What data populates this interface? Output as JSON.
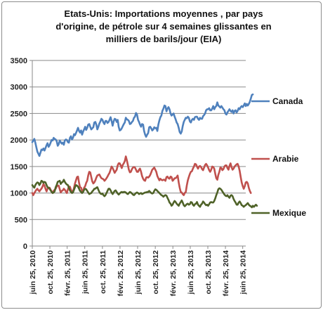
{
  "title_lines": [
    "Etats-Unis: Importations moyennes , par pays",
    "d'origine, de pétrole sur 4 semaines glissantes en",
    "milliers de barils/jour (EIA)"
  ],
  "chart_data": {
    "type": "line",
    "ylim": [
      0,
      3500
    ],
    "yticks": [
      0,
      500,
      1000,
      1500,
      2000,
      2500,
      3000,
      3500
    ],
    "grid": true,
    "legend_placement": "right, labels at line ends",
    "x_tick_labels": [
      "juin 25, 2010",
      "oct. 25, 2010",
      "févr. 25, 2011",
      "juin 25, 2011",
      "oct. 25, 2011",
      "févr. 25, 2012",
      "juin 25, 2012",
      "oct. 25, 2012",
      "févr. 25, 2013",
      "juin 25, 2013",
      "oct. 25, 2013",
      "févr. 25, 2014",
      "juin 25, 2014"
    ],
    "x_tick_weeks": [
      0,
      17.3,
      34.3,
      51.6,
      69,
      86.3,
      103.6,
      121,
      138.3,
      155.4,
      172.7,
      190,
      207
    ],
    "x_range_weeks": [
      0,
      210
    ],
    "series": [
      {
        "name": "Canada",
        "color": "#4f81bd",
        "values": [
          1960,
          1990,
          2020,
          1950,
          1860,
          1780,
          1740,
          1700,
          1760,
          1820,
          1810,
          1840,
          1800,
          1850,
          1900,
          1940,
          1870,
          1900,
          1950,
          2000,
          1990,
          2040,
          2020,
          2010,
          1980,
          1890,
          1920,
          1990,
          1960,
          1930,
          1950,
          1910,
          1990,
          2010,
          2000,
          1960,
          1950,
          2040,
          2070,
          2010,
          2040,
          2110,
          2090,
          2130,
          2180,
          2230,
          2170,
          2140,
          2180,
          2100,
          2160,
          2200,
          2250,
          2190,
          2230,
          2290,
          2300,
          2250,
          2200,
          2220,
          2240,
          2330,
          2340,
          2290,
          2200,
          2250,
          2310,
          2350,
          2400,
          2380,
          2330,
          2300,
          2360,
          2360,
          2320,
          2340,
          2380,
          2430,
          2360,
          2270,
          2350,
          2400,
          2390,
          2340,
          2380,
          2250,
          2180,
          2190,
          2220,
          2260,
          2300,
          2330,
          2420,
          2390,
          2380,
          2360,
          2300,
          2310,
          2340,
          2360,
          2420,
          2440,
          2510,
          2480,
          2380,
          2340,
          2290,
          2250,
          2300,
          2290,
          2170,
          2100,
          2060,
          2100,
          2130,
          2240,
          2250,
          2220,
          2180,
          2200,
          2240,
          2220,
          2230,
          2170,
          2290,
          2370,
          2430,
          2460,
          2550,
          2590,
          2650,
          2640,
          2540,
          2590,
          2620,
          2580,
          2500,
          2460,
          2480,
          2500,
          2440,
          2390,
          2330,
          2300,
          2230,
          2150,
          2120,
          2160,
          2260,
          2340,
          2380,
          2420,
          2410,
          2440,
          2420,
          2350,
          2330,
          2380,
          2400,
          2380,
          2430,
          2440,
          2440,
          2400,
          2380,
          2420,
          2400,
          2400,
          2450,
          2470,
          2500,
          2560,
          2580,
          2580,
          2600,
          2560,
          2560,
          2590,
          2640,
          2580,
          2620,
          2640,
          2710,
          2650,
          2630,
          2610,
          2640,
          2610,
          2580,
          2560,
          2500,
          2480,
          2520,
          2550,
          2580,
          2550,
          2530,
          2560,
          2500,
          2550,
          2560,
          2520,
          2550,
          2600,
          2580,
          2620,
          2640,
          2620,
          2650,
          2690,
          2640,
          2680,
          2650,
          2680,
          2720,
          2780,
          2850,
          2860
        ]
      },
      {
        "name": "Arabie",
        "color": "#c0504d",
        "values": [
          1000,
          960,
          1000,
          1030,
          1060,
          1080,
          1050,
          1030,
          1060,
          1080,
          1120,
          1170,
          1140,
          1080,
          1030,
          1080,
          1100,
          1100,
          1060,
          1030,
          1000,
          1040,
          1060,
          1080,
          1120,
          1140,
          1140,
          1070,
          1010,
          1040,
          1050,
          1080,
          1060,
          1030,
          1000,
          1070,
          1120,
          1120,
          1060,
          1030,
          1020,
          1100,
          1180,
          1240,
          1300,
          1310,
          1190,
          1110,
          1100,
          1040,
          1040,
          1100,
          1130,
          1190,
          1230,
          1330,
          1400,
          1390,
          1300,
          1220,
          1180,
          1200,
          1240,
          1290,
          1330,
          1340,
          1350,
          1310,
          1280,
          1270,
          1260,
          1230,
          1250,
          1280,
          1310,
          1350,
          1380,
          1440,
          1500,
          1470,
          1430,
          1380,
          1410,
          1440,
          1520,
          1560,
          1560,
          1520,
          1470,
          1530,
          1560,
          1600,
          1690,
          1620,
          1530,
          1440,
          1390,
          1400,
          1450,
          1480,
          1490,
          1480,
          1440,
          1400,
          1400,
          1440,
          1460,
          1400,
          1320,
          1270,
          1240,
          1230,
          1290,
          1300,
          1290,
          1310,
          1340,
          1390,
          1440,
          1460,
          1480,
          1440,
          1400,
          1320,
          1280,
          1240,
          1270,
          1250,
          1240,
          1250,
          1250,
          1230,
          1300,
          1310,
          1280,
          1270,
          1310,
          1300,
          1230,
          1250,
          1280,
          1280,
          1300,
          1330,
          1200,
          1100,
          1020,
          1010,
          980,
          960,
          1000,
          1020,
          1140,
          1240,
          1300,
          1360,
          1400,
          1410,
          1460,
          1500,
          1550,
          1540,
          1500,
          1460,
          1500,
          1510,
          1490,
          1450,
          1430,
          1480,
          1530,
          1550,
          1520,
          1480,
          1430,
          1400,
          1440,
          1500,
          1490,
          1460,
          1360,
          1280,
          1250,
          1340,
          1400,
          1480,
          1470,
          1430,
          1450,
          1500,
          1520,
          1520,
          1470,
          1440,
          1510,
          1560,
          1490,
          1440,
          1460,
          1500,
          1520,
          1540,
          1550,
          1500,
          1420,
          1300,
          1200,
          1130,
          1080,
          1130,
          1200,
          1210,
          1180,
          1100,
          1040,
          1000
        ]
      },
      {
        "name": "Mexique",
        "color": "#4f6228",
        "values": [
          1150,
          1120,
          1100,
          1150,
          1180,
          1200,
          1190,
          1150,
          1180,
          1230,
          1220,
          1190,
          1210,
          1200,
          1150,
          1110,
          1100,
          1080,
          1050,
          1020,
          1000,
          1010,
          1030,
          1110,
          1150,
          1210,
          1220,
          1230,
          1170,
          1200,
          1210,
          1250,
          1210,
          1180,
          1160,
          1150,
          1100,
          1050,
          1020,
          1000,
          1010,
          1060,
          1110,
          1150,
          1140,
          1120,
          1080,
          1040,
          1020,
          1000,
          1020,
          1060,
          1080,
          1070,
          1040,
          1010,
          980,
          990,
          1000,
          1030,
          1050,
          1080,
          1080,
          1100,
          1110,
          1060,
          1020,
          990,
          980,
          990,
          960,
          940,
          960,
          1000,
          1040,
          1080,
          1080,
          1050,
          1010,
          980,
          1010,
          1040,
          1050,
          1020,
          990,
          970,
          990,
          1010,
          1020,
          1010,
          1020,
          1020,
          1010,
          990,
          980,
          1000,
          1020,
          1010,
          990,
          970,
          960,
          980,
          1000,
          1010,
          1000,
          980,
          990,
          1000,
          980,
          990,
          1000,
          1010,
          1010,
          1020,
          1020,
          1040,
          1020,
          1000,
          990,
          1000,
          1040,
          1070,
          1060,
          1040,
          1020,
          1000,
          980,
          960,
          950,
          930,
          950,
          960,
          950,
          910,
          870,
          820,
          800,
          760,
          780,
          820,
          850,
          830,
          800,
          780,
          760,
          800,
          830,
          860,
          820,
          770,
          750,
          770,
          790,
          800,
          780,
          790,
          830,
          820,
          780,
          760,
          790,
          800,
          830,
          780,
          760,
          740,
          780,
          800,
          840,
          820,
          790,
          770,
          780,
          760,
          790,
          820,
          830,
          820,
          820,
          850,
          900,
          960,
          1010,
          1070,
          1090,
          1080,
          1060,
          1030,
          1000,
          970,
          950,
          940,
          960,
          930,
          910,
          950,
          960,
          940,
          890,
          850,
          820,
          780,
          780,
          820,
          840,
          810,
          770,
          760,
          740,
          760,
          770,
          790,
          810,
          780,
          760,
          750,
          730,
          760,
          740,
          760,
          780,
          760
        ]
      }
    ]
  }
}
